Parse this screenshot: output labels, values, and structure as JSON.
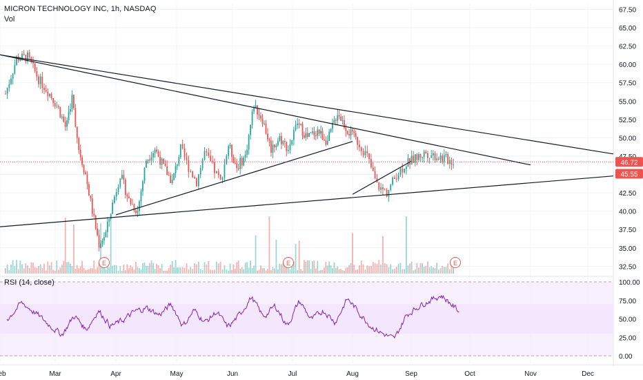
{
  "header": {
    "symbol_line": "MICRON TECHNOLOGY INC, 1h, NASDAQ",
    "volume_label": "Vol"
  },
  "rsi": {
    "label": "RSI (14, close)",
    "ticks": [
      "100.00",
      "75.00",
      "50.00",
      "25.00",
      "0.00"
    ],
    "upper_band": 70,
    "lower_band": 30,
    "band_color": "#f3e6fd",
    "line_color": "#7e22b5"
  },
  "chart_data": {
    "type": "candlestick",
    "y_ticks": [
      "67.50",
      "65.00",
      "62.50",
      "60.00",
      "57.50",
      "55.00",
      "52.50",
      "50.00",
      "47.50",
      "45.00",
      "42.50",
      "40.00",
      "37.50",
      "35.00",
      "32.50"
    ],
    "ylim": [
      31.5,
      68.2
    ],
    "x_ticks": [
      "Feb",
      "Mar",
      "Apr",
      "May",
      "Jun",
      "Jul",
      "Aug",
      "Sep",
      "Oct",
      "Nov",
      "Dec"
    ],
    "price_label": "46.72",
    "price_level": 46.72,
    "countdown_label": "45:55",
    "countdown_level": 45.1,
    "earnings_marker": "E",
    "earnings_months": [
      "Mar",
      "Jun",
      "Sep"
    ],
    "up_color": "#26a69a",
    "down_color": "#ef5350",
    "path": [
      [
        "Feb",
        56.0
      ],
      [
        "Feb",
        60.8
      ],
      [
        "Feb",
        61.0
      ],
      [
        "Feb",
        58.0
      ],
      [
        "Feb",
        56.0
      ],
      [
        "Mar",
        54.0
      ],
      [
        "Mar",
        51.5
      ],
      [
        "Mar",
        55.5
      ],
      [
        "Mar",
        48.5
      ],
      [
        "Mar",
        45.0
      ],
      [
        "Mar",
        40.0
      ],
      [
        "Mar",
        35.5
      ],
      [
        "Mar",
        37.0
      ],
      [
        "Mar",
        41.0
      ],
      [
        "Apr",
        45.0
      ],
      [
        "Apr",
        41.5
      ],
      [
        "Apr",
        40.0
      ],
      [
        "Apr",
        47.0
      ],
      [
        "Apr",
        48.5
      ],
      [
        "Apr",
        46.0
      ],
      [
        "Apr",
        44.0
      ],
      [
        "May",
        48.5
      ],
      [
        "May",
        46.0
      ],
      [
        "May",
        44.0
      ],
      [
        "May",
        48.0
      ],
      [
        "May",
        46.0
      ],
      [
        "May",
        44.0
      ],
      [
        "May",
        49.0
      ],
      [
        "Jun",
        46.0
      ],
      [
        "Jun",
        47.5
      ],
      [
        "Jun",
        54.5
      ],
      [
        "Jun",
        52.5
      ],
      [
        "Jun",
        48.5
      ],
      [
        "Jun",
        50.0
      ],
      [
        "Jun",
        48.5
      ],
      [
        "Jul",
        52.0
      ],
      [
        "Jul",
        50.0
      ],
      [
        "Jul",
        51.0
      ],
      [
        "Jul",
        49.5
      ],
      [
        "Jul",
        53.5
      ],
      [
        "Jul",
        51.0
      ],
      [
        "Aug",
        49.5
      ],
      [
        "Aug",
        47.5
      ],
      [
        "Aug",
        43.5
      ],
      [
        "Aug",
        42.5
      ],
      [
        "Aug",
        45.0
      ],
      [
        "Aug",
        46.5
      ],
      [
        "Sep",
        48.0
      ],
      [
        "Sep",
        46.7
      ]
    ],
    "trendlines": [
      {
        "from": [
          "Feb",
          61.3
        ],
        "to": [
          "Dec",
          47.8
        ]
      },
      {
        "from": [
          "Feb",
          61.3
        ],
        "to": [
          "Nov",
          46.3
        ]
      },
      {
        "from": [
          "Jan",
          37.8
        ],
        "to": [
          "Dec",
          44.8
        ]
      },
      {
        "from": [
          "Apr",
          39.5
        ],
        "to": [
          "Aug",
          49.5
        ]
      },
      {
        "from": [
          "Aug",
          42.3
        ],
        "to": [
          "Sep",
          46.8
        ]
      }
    ],
    "rsi_path": [
      [
        "Feb",
        50
      ],
      [
        "Feb",
        72
      ],
      [
        "Feb",
        58
      ],
      [
        "Feb",
        42
      ],
      [
        "Mar",
        28
      ],
      [
        "Mar",
        55
      ],
      [
        "Mar",
        35
      ],
      [
        "Mar",
        62
      ],
      [
        "Mar",
        40
      ],
      [
        "Apr",
        48
      ],
      [
        "Apr",
        60
      ],
      [
        "Apr",
        65
      ],
      [
        "Apr",
        55
      ],
      [
        "Apr",
        70
      ],
      [
        "May",
        40
      ],
      [
        "May",
        62
      ],
      [
        "May",
        45
      ],
      [
        "May",
        60
      ],
      [
        "May",
        38
      ],
      [
        "Jun",
        55
      ],
      [
        "Jun",
        80
      ],
      [
        "Jun",
        52
      ],
      [
        "Jun",
        68
      ],
      [
        "Jun",
        40
      ],
      [
        "Jul",
        75
      ],
      [
        "Jul",
        48
      ],
      [
        "Jul",
        62
      ],
      [
        "Jul",
        45
      ],
      [
        "Jul",
        78
      ],
      [
        "Aug",
        58
      ],
      [
        "Aug",
        40
      ],
      [
        "Aug",
        30
      ],
      [
        "Aug",
        22
      ],
      [
        "Aug",
        55
      ],
      [
        "Sep",
        70
      ],
      [
        "Sep",
        82
      ],
      [
        "Sep",
        58
      ]
    ]
  }
}
